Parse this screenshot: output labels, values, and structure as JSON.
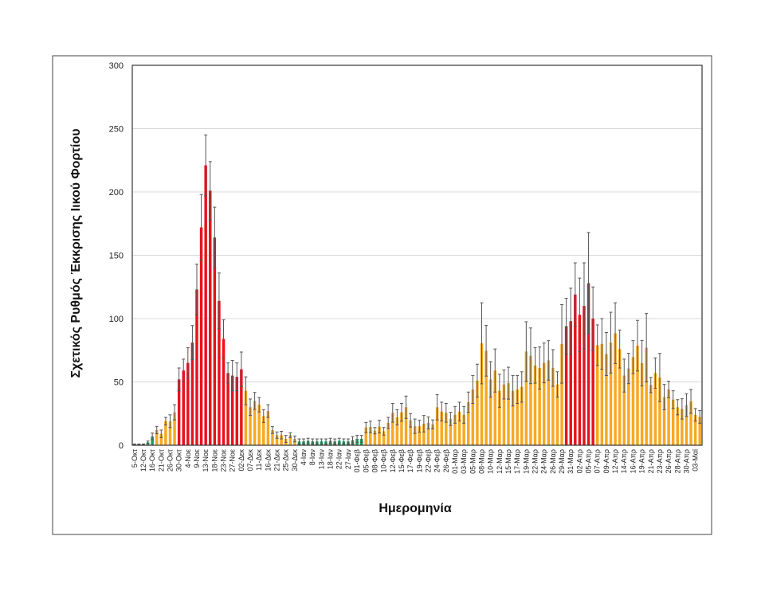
{
  "chart_data": {
    "type": "bar",
    "title": "",
    "xlabel": "Ημερομηνία",
    "ylabel": "Σχετικός Ρυθμός Έκκρισης Ιικού Φορτίου",
    "ylim": [
      0,
      300
    ],
    "yticks": [
      0,
      50,
      100,
      150,
      200,
      250,
      300
    ],
    "grid": true,
    "legend": "none",
    "colors": {
      "green": "#1f9a5a",
      "orange": "#f7a823",
      "red": "#e8121c",
      "error_bar": "#555555"
    },
    "categories": [
      "5-Οκτ",
      "",
      "12-Οκτ",
      "",
      "16-Οκτ",
      "",
      "21-Οκτ",
      "",
      "26-Οκτ",
      "",
      "30-Οκτ",
      "",
      "4-Νοε",
      "",
      "9-Νοε",
      "",
      "13-Νοε",
      "",
      "18-Νοε",
      "",
      "23-Νοε",
      "",
      "27-Νοε",
      "",
      "02-Δεκ",
      "",
      "07-Δεκ",
      "",
      "11-Δεκ",
      "",
      "16-Δεκ",
      "",
      "21-Δεκ",
      "",
      "25-Δεκ",
      "",
      "30-Δεκ",
      "",
      "4-Ιαν",
      "",
      "8-Ιαν",
      "",
      "13-Ιαν",
      "",
      "18-Ιαν",
      "",
      "22-Ιαν",
      "",
      "27-Ιαν",
      "",
      "01-Φεβ",
      "",
      "05-Φεβ",
      "",
      "08-Φεβ",
      "",
      "10-Φεβ",
      "",
      "12-Φεβ",
      "",
      "15-Φεβ",
      "",
      "17-Φεβ",
      "",
      "19-Φεβ",
      "",
      "22-Φεβ",
      "",
      "24-Φεβ",
      "",
      "26-Φεβ",
      "",
      "01-Μαρ",
      "",
      "03-Μαρ",
      "",
      "05-Μαρ",
      "",
      "08-Μαρ",
      "",
      "10-Μαρ",
      "",
      "12-Μαρ",
      "",
      "15-Μαρ",
      "",
      "17-Μαρ",
      "",
      "19-Μαρ",
      "",
      "22-Μαρ",
      "",
      "24-Μαρ",
      "",
      "26-Μαρ",
      "",
      "29-Μαρ",
      "",
      "31-Μαρ",
      "",
      "02-Απρ",
      "",
      "05-Απρ",
      "",
      "07-Απρ",
      "",
      "09-Απρ",
      "",
      "12-Απρ",
      "",
      "14-Απρ",
      "",
      "16-Απρ",
      "",
      "19-Απρ",
      "",
      "21-Απρ",
      "",
      "23-Απρ",
      "",
      "26-Απρ",
      "",
      "28-Απρ",
      "",
      "30-Απρ",
      "",
      "03-Μαϊ",
      ""
    ],
    "values": [
      0.7,
      0.7,
      0.7,
      2.3,
      7,
      12,
      9,
      19,
      19,
      26,
      52,
      59,
      65,
      81,
      123,
      172,
      221,
      201,
      164,
      114,
      84,
      57,
      55,
      54,
      60,
      43,
      30,
      35,
      32,
      23,
      27,
      12,
      8,
      8,
      5,
      8,
      5,
      3,
      3,
      3.5,
      3,
      3,
      3,
      3,
      3.5,
      3,
      3.5,
      3,
      3,
      4,
      5,
      5,
      14,
      14.5,
      11.5,
      14.7,
      11,
      17.6,
      25.6,
      22,
      26,
      30,
      19.7,
      15,
      15,
      17,
      17.6,
      16.5,
      30,
      26.6,
      25.6,
      20.8,
      24,
      26.6,
      24,
      34,
      44,
      51,
      80.5,
      74.6,
      52,
      59,
      43,
      48,
      49,
      43,
      44,
      46,
      74,
      70.6,
      63,
      61,
      65,
      67,
      61,
      48,
      80,
      94,
      98,
      119,
      103,
      110,
      128,
      100,
      79,
      80,
      72,
      81,
      88.5,
      76,
      55,
      60.6,
      69.6,
      78.6,
      64.8,
      77,
      47.6,
      57,
      53.5,
      38,
      44,
      36,
      30,
      28.7,
      31.7,
      34.6,
      24,
      22.4
    ],
    "errors": [
      0.3,
      0.3,
      0.3,
      1,
      2.6,
      2.9,
      3,
      3,
      5,
      6,
      9,
      9,
      12,
      13.5,
      20,
      26,
      24,
      23,
      24,
      22,
      15,
      8,
      12,
      11,
      13.6,
      11,
      6.5,
      6.7,
      5.7,
      5,
      5,
      2.7,
      2.5,
      3,
      2.8,
      1.9,
      2.3,
      2,
      2,
      2,
      2,
      2,
      2,
      2,
      2,
      2,
      2,
      2,
      2,
      2.7,
      2.8,
      2.8,
      4,
      4.5,
      2.5,
      5,
      3,
      4.4,
      7.4,
      6,
      7,
      8.8,
      5.3,
      5.7,
      4.7,
      6.5,
      4.8,
      3.5,
      10,
      7.4,
      7.4,
      5.2,
      6.6,
      7.4,
      6.6,
      8,
      11,
      13,
      32,
      20,
      14,
      17,
      13,
      11.5,
      12.6,
      12,
      11,
      12,
      23.5,
      22,
      14,
      16.6,
      15.7,
      15.6,
      14.5,
      10,
      31,
      22,
      26,
      25,
      29,
      34,
      40,
      25,
      16,
      20,
      17,
      24,
      24,
      15,
      13,
      12,
      13,
      20,
      18,
      27,
      6,
      12,
      19,
      10,
      6.5,
      7,
      6,
      8,
      9,
      9.4,
      5,
      5
    ],
    "levels": [
      "green",
      "green",
      "green",
      "green",
      "green",
      "orange",
      "orange",
      "orange",
      "orange",
      "orange",
      "red",
      "red",
      "red",
      "red",
      "red",
      "red",
      "red",
      "red",
      "red",
      "red",
      "red",
      "red",
      "red",
      "red",
      "red",
      "orange",
      "orange",
      "orange",
      "orange",
      "orange",
      "orange",
      "orange",
      "orange",
      "orange",
      "orange",
      "orange",
      "orange",
      "green",
      "green",
      "green",
      "green",
      "green",
      "green",
      "green",
      "green",
      "green",
      "green",
      "green",
      "green",
      "green",
      "green",
      "green",
      "orange",
      "orange",
      "orange",
      "orange",
      "orange",
      "orange",
      "orange",
      "orange",
      "orange",
      "orange",
      "orange",
      "orange",
      "orange",
      "orange",
      "orange",
      "orange",
      "orange",
      "orange",
      "orange",
      "orange",
      "orange",
      "orange",
      "orange",
      "orange",
      "orange",
      "orange",
      "orange",
      "orange",
      "orange",
      "orange",
      "orange",
      "orange",
      "orange",
      "orange",
      "orange",
      "orange",
      "orange",
      "orange",
      "orange",
      "orange",
      "orange",
      "orange",
      "orange",
      "orange",
      "orange",
      "red",
      "red",
      "red",
      "red",
      "red",
      "red",
      "red",
      "orange",
      "orange",
      "orange",
      "orange",
      "orange",
      "orange",
      "orange",
      "orange",
      "orange",
      "orange",
      "orange",
      "orange",
      "orange",
      "orange",
      "orange",
      "orange",
      "orange",
      "orange",
      "orange",
      "orange",
      "orange",
      "orange",
      "orange",
      "orange"
    ]
  }
}
